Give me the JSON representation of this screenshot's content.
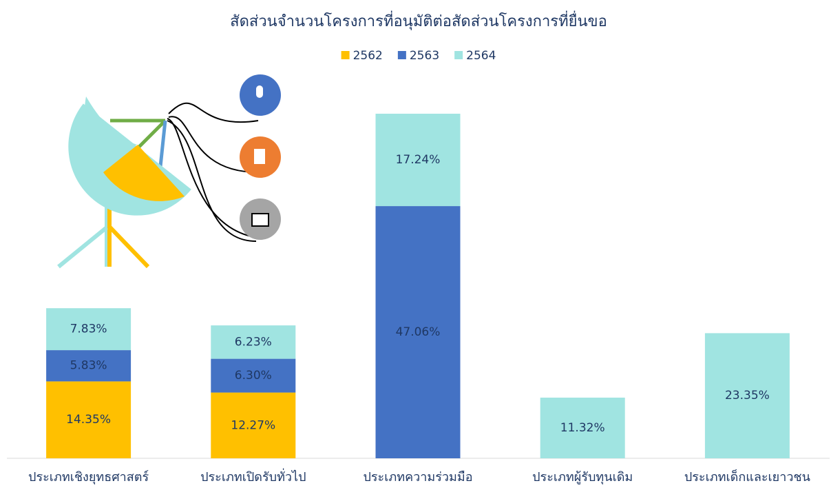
{
  "chart_data": {
    "type": "bar",
    "stacked": true,
    "title": "สัดส่วนจำนวนโครงการที่อนุมัติต่อสัดส่วนโครงการที่ยื่นขอ",
    "categories": [
      "ประเภทเชิงยุทธศาสตร์",
      "ประเภทเปิดรับทั่วไป",
      "ประเภทความร่วมมือ",
      "ประเภทผู้รับทุนเดิม",
      "ประเภทเด็กและเยาวชน"
    ],
    "series": [
      {
        "name": "2562",
        "color": "#FFC000",
        "values": [
          14.35,
          12.27,
          null,
          null,
          null
        ],
        "value_labels": [
          "14.35%",
          "12.27%",
          null,
          null,
          null
        ]
      },
      {
        "name": "2563",
        "color": "#4472C4",
        "values": [
          5.83,
          6.3,
          47.06,
          null,
          null
        ],
        "value_labels": [
          "5.83%",
          "6.30%",
          "47.06%",
          null,
          null
        ]
      },
      {
        "name": "2564",
        "color": "#A0E4E1",
        "values": [
          7.83,
          6.23,
          17.24,
          11.32,
          23.35
        ],
        "value_labels": [
          "7.83%",
          "6.23%",
          "17.24%",
          "11.32%",
          "23.35%"
        ]
      }
    ],
    "legend": "top"
  }
}
